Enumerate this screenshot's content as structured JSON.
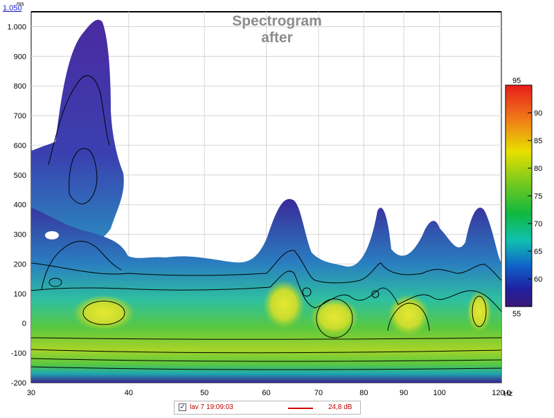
{
  "chart_data": {
    "type": "heatmap",
    "title": "Spectrogram",
    "subtitle": "after",
    "y_unit": "ms",
    "y_top_label": "1.050",
    "x_unit": "Hz",
    "xscale": "log",
    "xlim": [
      30,
      120
    ],
    "ylim": [
      -200,
      1050
    ],
    "x_ticks": [
      {
        "value": 30,
        "label": "30"
      },
      {
        "value": 40,
        "label": "40"
      },
      {
        "value": 50,
        "label": "50"
      },
      {
        "value": 60,
        "label": "60"
      },
      {
        "value": 70,
        "label": "70"
      },
      {
        "value": 80,
        "label": "80"
      },
      {
        "value": 90,
        "label": "90"
      },
      {
        "value": 100,
        "label": "100"
      },
      {
        "value": 120,
        "label": "120,0"
      }
    ],
    "y_ticks": [
      {
        "value": 1000,
        "label": "1.000"
      },
      {
        "value": 900,
        "label": "900"
      },
      {
        "value": 800,
        "label": "800"
      },
      {
        "value": 700,
        "label": "700"
      },
      {
        "value": 600,
        "label": "600"
      },
      {
        "value": 500,
        "label": "500"
      },
      {
        "value": 400,
        "label": "400"
      },
      {
        "value": 300,
        "label": "300"
      },
      {
        "value": 200,
        "label": "200"
      },
      {
        "value": 100,
        "label": "100"
      },
      {
        "value": 0,
        "label": "0"
      },
      {
        "value": -100,
        "label": "-100"
      },
      {
        "value": -200,
        "label": "-200"
      }
    ],
    "colorbar": {
      "min": 55,
      "max": 95,
      "top_label": "95",
      "bottom_label": "55",
      "ticks": [
        {
          "value": 90,
          "label": "90"
        },
        {
          "value": 85,
          "label": "85"
        },
        {
          "value": 80,
          "label": "80"
        },
        {
          "value": 75,
          "label": "75"
        },
        {
          "value": 70,
          "label": "70"
        },
        {
          "value": 65,
          "label": "65"
        },
        {
          "value": 60,
          "label": "60"
        }
      ]
    },
    "peaks": [
      {
        "freq": 37,
        "time_ms": 50,
        "level_db": 85
      },
      {
        "freq": 64,
        "time_ms": 50,
        "level_db": 83
      },
      {
        "freq": 73,
        "time_ms": 40,
        "level_db": 84
      },
      {
        "freq": 88,
        "time_ms": 40,
        "level_db": 83
      },
      {
        "freq": 117,
        "time_ms": 40,
        "level_db": 86
      }
    ],
    "ridges": [
      {
        "freq": 36,
        "time_ms": 1020
      },
      {
        "freq": 64,
        "time_ms": 440
      },
      {
        "freq": 84,
        "time_ms": 400
      },
      {
        "freq": 102,
        "time_ms": 360
      },
      {
        "freq": 118,
        "time_ms": 400
      }
    ],
    "grid": true,
    "legend_position": "bottom",
    "legend": [
      {
        "checked": true,
        "label": "lav 7 19:09:03",
        "value": "24,8 dB",
        "color": "#d40000"
      }
    ]
  },
  "colors": {
    "grid": "#d4d4d4",
    "title": "#8c8c8c",
    "legend_text": "#c00000",
    "y_unit_link": "#1a1acc"
  }
}
